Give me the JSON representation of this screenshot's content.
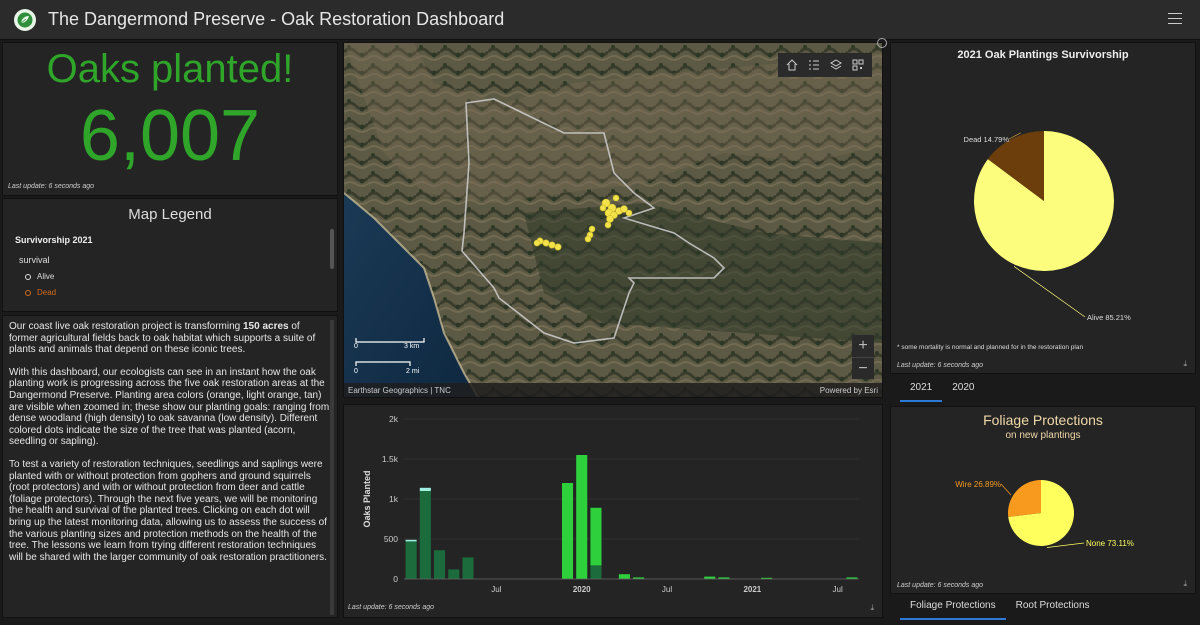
{
  "header": {
    "title": "The Dangermond Preserve - Oak Restoration Dashboard"
  },
  "indicator": {
    "title": "Oaks planted!",
    "value": "6,007",
    "last_update": "Last update: 6 seconds ago"
  },
  "legend": {
    "title": "Map Legend",
    "layer": "Survivorship 2021",
    "field": "survival",
    "items": [
      {
        "label": "Alive",
        "color": "#dddddd"
      },
      {
        "label": "Dead",
        "color": "#d26a1a"
      }
    ]
  },
  "description": {
    "p1_a": "Our coast live oak restoration project is transforming ",
    "p1_b": "150 acres",
    "p1_c": " of former agricultural fields back to oak habitat which supports a suite of plants and animals that depend on these iconic trees.",
    "p2": "With this dashboard, our ecologists can see in an instant how the oak planting work is progressing across the five oak restoration areas at the Dangermond Preserve. Planting area colors (orange, light orange, tan) are visible when zoomed in; these show our planting goals: ranging from dense woodland (high density) to oak savanna (low density).  Different colored dots indicate the size of the tree that was planted (acorn, seedling or sapling).",
    "p3": "To test a variety of restoration techniques, seedlings and saplings were planted with or without protection from gophers and ground squirrels (root protectors) and with or without protection from deer and cattle (foliage protectors). Through the next five years, we will be monitoring the health and survival of the planted trees. Clicking on each dot will bring up the latest monitoring data, allowing us to assess the success of the various planting sizes and protection methods on the health of the tree. The lessons we learn from trying different restoration techniques will be shared with the larger community of oak restoration practitioners."
  },
  "map": {
    "attribution_left": "Earthstar Geographics | TNC",
    "attribution_right": "Powered by Esri",
    "scale_km": "3 km",
    "scale_mi": "2 mi",
    "scale_zero_1": "0",
    "scale_zero_2": "0",
    "zoom_in": "+",
    "zoom_out": "−",
    "tools": [
      "home-icon",
      "list-icon",
      "layers-icon",
      "qr-icon"
    ]
  },
  "survivorship": {
    "title": "2021 Oak Plantings Survivorship",
    "footnote": "* some mortality is normal and planned for in the restoration plan",
    "last_update": "Last update: 6 seconds ago",
    "tabs": [
      "2021",
      "2020"
    ],
    "active_tab": 0
  },
  "foliage": {
    "title": "Foliage Protections",
    "subtitle": "on new plantings",
    "last_update": "Last update: 6 seconds ago",
    "tabs": [
      "Foliage Protections",
      "Root Protections"
    ],
    "active_tab": 0
  },
  "bars": {
    "last_update": "Last update: 6 seconds ago"
  },
  "chart_data": [
    {
      "type": "pie",
      "title": "2021 Oak Plantings Survivorship",
      "categories": [
        "Alive",
        "Dead"
      ],
      "values": [
        85.21,
        14.79
      ],
      "labels": [
        "Alive 85.21%",
        "Dead 14.79%"
      ],
      "colors": [
        "#fdfd7d",
        "#6b3e0c"
      ]
    },
    {
      "type": "pie",
      "title": "Foliage Protections",
      "subtitle": "on new plantings",
      "categories": [
        "None",
        "Wire"
      ],
      "values": [
        73.11,
        26.89
      ],
      "labels": [
        "None 73.11%",
        "Wire 26.89%"
      ],
      "colors": [
        "#ffff5e",
        "#f79a1e"
      ]
    },
    {
      "type": "bar",
      "ylabel": "Oaks Planted",
      "ylim": [
        0,
        2000
      ],
      "y_ticks": [
        "0",
        "500",
        "1k",
        "1.5k",
        "2k"
      ],
      "x_ticks": [
        {
          "label": "Jul",
          "at": 6.5
        },
        {
          "label": "2020",
          "at": 12.5,
          "bold": true
        },
        {
          "label": "Jul",
          "at": 18.5
        },
        {
          "label": "2021",
          "at": 24.5,
          "bold": true
        },
        {
          "label": "Jul",
          "at": 30.5
        }
      ],
      "months": 32,
      "series": [
        {
          "name": "base",
          "color": "#1b6b3c",
          "values": [
            470,
            1100,
            360,
            120,
            270,
            0,
            0,
            0,
            0,
            0,
            0,
            0,
            0,
            170,
            0,
            0,
            0,
            0,
            0,
            0,
            0,
            0,
            0,
            0,
            0,
            0,
            0,
            0,
            0,
            0,
            0,
            0
          ]
        },
        {
          "name": "top",
          "color": "#2ed03c",
          "values": [
            20,
            40,
            0,
            0,
            0,
            0,
            0,
            0,
            0,
            0,
            0,
            1200,
            1550,
            720,
            0,
            60,
            20,
            0,
            0,
            0,
            0,
            30,
            20,
            0,
            0,
            15,
            0,
            0,
            0,
            0,
            0,
            20
          ]
        }
      ],
      "accent_tip": "#9ff0e0"
    }
  ]
}
